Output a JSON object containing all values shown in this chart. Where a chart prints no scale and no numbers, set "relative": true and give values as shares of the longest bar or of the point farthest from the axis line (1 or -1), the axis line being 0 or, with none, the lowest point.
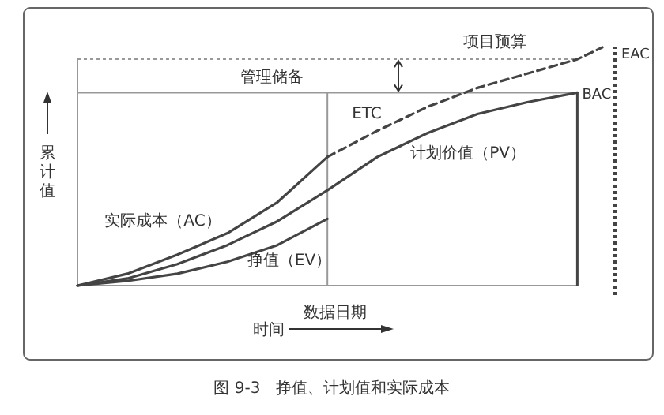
{
  "chart_data": {
    "type": "line",
    "relative": true,
    "title": "图 9-3　挣值、计划值和实际成本",
    "xlabel": "时间",
    "ylabel": "累计值",
    "categories": [
      null,
      null,
      null,
      null,
      null,
      null,
      null,
      null,
      null,
      null,
      null,
      null,
      null,
      null,
      null,
      null,
      null,
      null,
      null,
      null,
      null,
      null
    ],
    "series": [
      {
        "name": "计划价值（PV）",
        "color": "#444444",
        "values": [
          0,
          null,
          0.03,
          null,
          0.09,
          null,
          0.17,
          null,
          0.27,
          null,
          0.4,
          null,
          0.54,
          null,
          0.64,
          null,
          0.72,
          null,
          0.77,
          null,
          0.81,
          null
        ]
      },
      {
        "name": "实际成本（AC）",
        "color": "#444444",
        "values": [
          0,
          null,
          0.05,
          null,
          0.13,
          null,
          0.22,
          null,
          0.35,
          null,
          0.54,
          null,
          null,
          null,
          null,
          null,
          null,
          null,
          null,
          null,
          null,
          null
        ]
      },
      {
        "name": "挣值（EV）",
        "color": "#444444",
        "values": [
          0,
          null,
          0.02,
          null,
          0.05,
          null,
          0.1,
          null,
          0.17,
          null,
          0.28,
          null,
          null,
          null,
          null,
          null,
          null,
          null,
          null,
          null,
          null,
          null
        ]
      },
      {
        "name": "ETC",
        "color": "#444444",
        "line_style": "dashed",
        "values": [
          null,
          null,
          null,
          null,
          null,
          null,
          null,
          null,
          null,
          null,
          0.54,
          null,
          0.65,
          null,
          0.75,
          null,
          0.83,
          null,
          0.89,
          null,
          0.95,
          1
        ]
      }
    ],
    "ref_lines": [
      {
        "axis": "y",
        "value": 0.95,
        "label": "项目预算",
        "color": "#999999",
        "line_style": "dotted"
      },
      {
        "axis": "y",
        "value": 0.81,
        "label": "BAC",
        "color": "#999999"
      }
    ],
    "annotations": [
      "管理储备",
      "数据日期",
      "EAC"
    ],
    "legend": false,
    "marker": "none",
    "line_style": "solid"
  }
}
